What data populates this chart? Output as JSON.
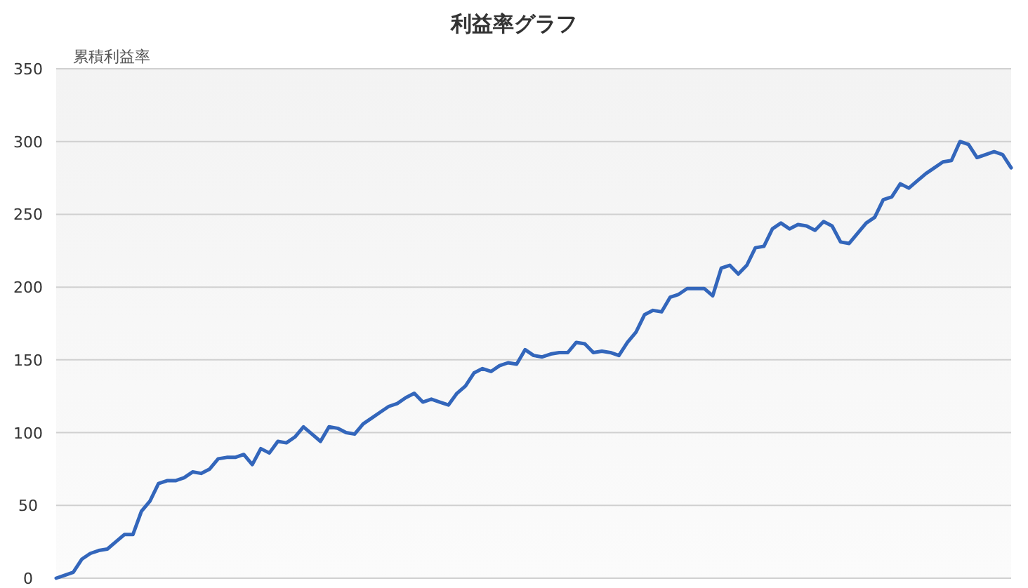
{
  "chart_data": {
    "type": "line",
    "title": "利益率グラフ",
    "ylabel": "累積利益率",
    "categories": [
      null,
      null,
      null,
      null,
      null,
      null,
      null,
      null,
      null,
      null,
      null,
      null,
      null,
      null,
      null,
      null,
      null,
      null,
      null,
      null,
      null,
      null,
      null,
      null,
      null,
      null,
      null,
      null,
      null,
      null,
      null,
      null,
      null,
      null,
      null,
      null,
      null,
      null,
      null,
      null,
      null,
      null,
      null,
      null,
      null,
      null,
      null,
      null,
      null,
      null,
      null,
      null,
      null,
      null,
      null,
      null,
      null,
      null,
      null,
      null,
      null,
      null,
      null,
      null,
      null,
      null,
      null,
      null,
      null,
      null,
      null,
      null,
      null,
      null,
      null,
      null,
      null,
      null,
      null,
      null,
      null,
      null,
      null,
      null,
      null,
      null,
      null,
      null,
      null,
      null,
      null,
      null,
      null,
      null,
      null,
      null,
      null,
      null,
      null,
      null,
      null,
      null,
      null,
      null,
      null,
      null,
      null,
      null,
      null,
      null,
      null,
      null,
      null
    ],
    "series": [
      {
        "color": "#3366bb",
        "values": [
          0,
          2,
          4,
          13,
          17,
          19,
          20,
          25,
          30,
          30,
          46,
          53,
          65,
          67,
          67,
          69,
          73,
          72,
          75,
          82,
          83,
          83,
          85,
          78,
          89,
          86,
          94,
          93,
          97,
          104,
          99,
          94,
          104,
          103,
          100,
          99,
          106,
          110,
          114,
          118,
          120,
          124,
          127,
          121,
          123,
          121,
          119,
          127,
          132,
          141,
          144,
          142,
          146,
          148,
          147,
          157,
          153,
          152,
          154,
          155,
          155,
          162,
          161,
          155,
          156,
          155,
          153,
          162,
          169,
          181,
          184,
          183,
          193,
          195,
          199,
          199,
          199,
          194,
          213,
          215,
          209,
          215,
          227,
          228,
          240,
          244,
          240,
          243,
          242,
          239,
          245,
          242,
          231,
          230,
          237,
          244,
          248,
          260,
          262,
          271,
          268,
          273,
          278,
          282,
          286,
          287,
          300,
          298,
          289,
          291,
          293,
          291,
          282
        ]
      }
    ],
    "ylim": [
      0,
      350
    ],
    "yticks": [
      0,
      50,
      100,
      150,
      200,
      250,
      300,
      350
    ],
    "grid": "y",
    "marker": "none",
    "line_style": "solid"
  }
}
